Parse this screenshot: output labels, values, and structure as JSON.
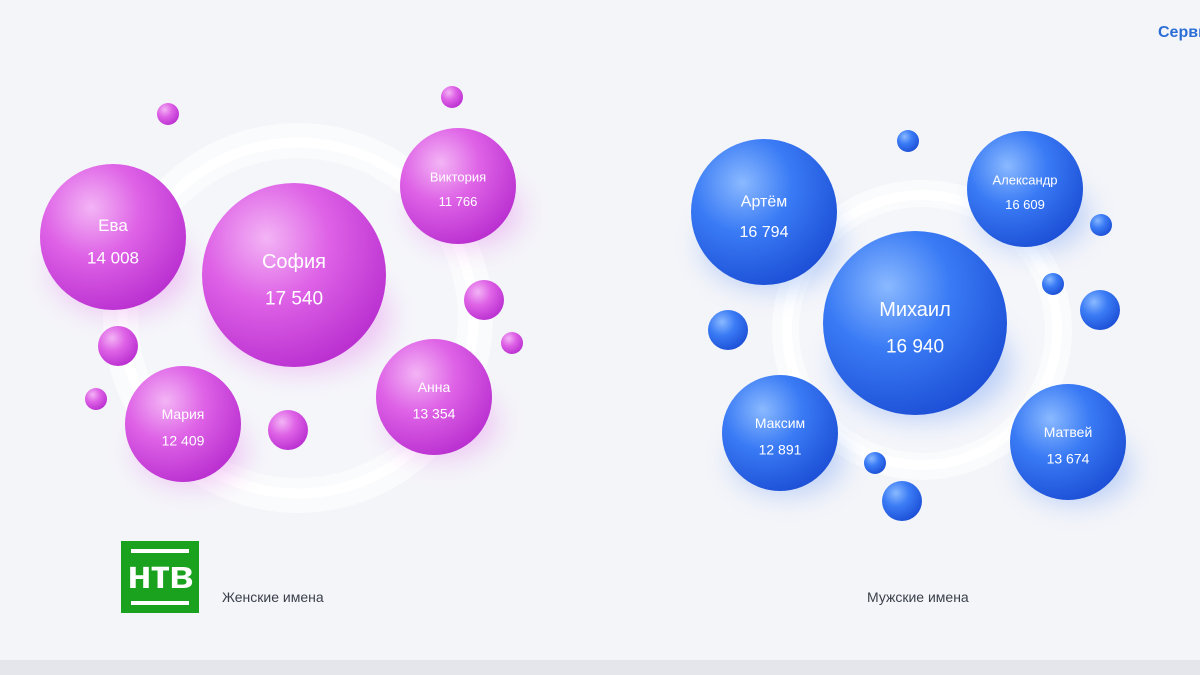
{
  "header": {
    "service_label": "Серви"
  },
  "logo": {
    "text": "нтв"
  },
  "colors": {
    "female": "#d64ee0",
    "male": "#2d6ef0",
    "background": "#f4f5f9",
    "logo_green": "#1aa11e",
    "link_blue": "#2b6fd6"
  },
  "chart_data": [
    {
      "type": "bubble",
      "title": "Женские имена",
      "color": "#d64ee0",
      "items": [
        {
          "name": "София",
          "value": 17540,
          "label": "17 540"
        },
        {
          "name": "Ева",
          "value": 14008,
          "label": "14 008"
        },
        {
          "name": "Анна",
          "value": 13354,
          "label": "13 354"
        },
        {
          "name": "Мария",
          "value": 12409,
          "label": "12 409"
        },
        {
          "name": "Виктория",
          "value": 11766,
          "label": "11 766"
        }
      ]
    },
    {
      "type": "bubble",
      "title": "Мужские имена",
      "color": "#2d6ef0",
      "items": [
        {
          "name": "Михаил",
          "value": 16940,
          "label": "16 940"
        },
        {
          "name": "Артём",
          "value": 16794,
          "label": "16 794"
        },
        {
          "name": "Матвей",
          "value": 13674,
          "label": "13 674"
        },
        {
          "name": "Максим",
          "value": 12891,
          "label": "12 891"
        },
        {
          "name": "Александр",
          "value": 16609,
          "label": "16 609"
        }
      ]
    }
  ]
}
